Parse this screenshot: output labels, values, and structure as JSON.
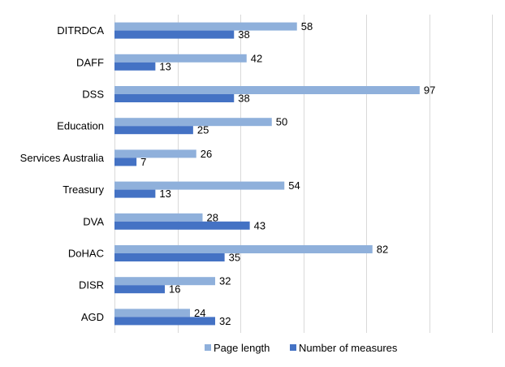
{
  "chart_data": {
    "type": "bar",
    "orientation": "horizontal",
    "categories": [
      "DITRDCA",
      "DAFF",
      "DSS",
      "Education",
      "Services Australia",
      "Treasury",
      "DVA",
      "DoHAC",
      "DISR",
      "AGD"
    ],
    "series": [
      {
        "name": "Page length",
        "values": [
          58,
          42,
          97,
          50,
          26,
          54,
          28,
          82,
          32,
          24
        ],
        "color": "#8FB0DB"
      },
      {
        "name": "Number of measures",
        "values": [
          38,
          13,
          38,
          25,
          7,
          13,
          43,
          35,
          16,
          32
        ],
        "color": "#4472C4"
      }
    ],
    "xlim": [
      0,
      120
    ],
    "x_gridlines": [
      0,
      20,
      40,
      60,
      80,
      100,
      120
    ],
    "x_tick_labels_shown": false,
    "grid": true,
    "data_labels": true,
    "legend": {
      "position": "bottom"
    }
  }
}
